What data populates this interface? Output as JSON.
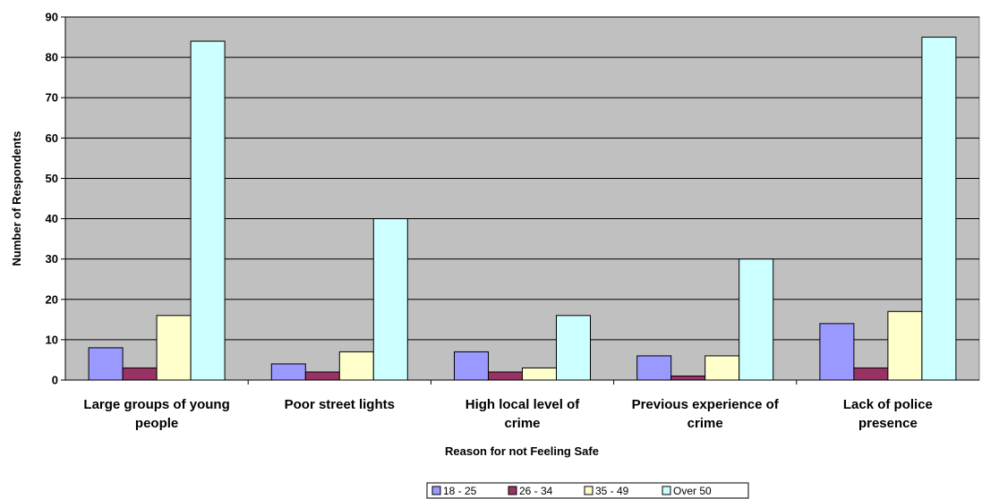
{
  "chart_data": {
    "type": "bar",
    "xlabel": "Reason for not Feeling Safe",
    "ylabel": "Number of Respondents",
    "ylim": [
      0,
      90
    ],
    "yticks": [
      0,
      10,
      20,
      30,
      40,
      50,
      60,
      70,
      80,
      90
    ],
    "grid": true,
    "legend_position": "bottom",
    "plot_background": "#c0c0c0",
    "categories": [
      [
        "Large groups of young",
        "people"
      ],
      [
        "Poor street lights"
      ],
      [
        "High local level of",
        "crime"
      ],
      [
        "Previous experience of",
        "crime"
      ],
      [
        "Lack of police",
        "presence"
      ]
    ],
    "series": [
      {
        "name": "18 - 25",
        "color": "#9999ff",
        "values": [
          8,
          4,
          7,
          6,
          14
        ]
      },
      {
        "name": "26 - 34",
        "color": "#993366",
        "values": [
          3,
          2,
          2,
          1,
          3
        ]
      },
      {
        "name": "35 - 49",
        "color": "#ffffcc",
        "values": [
          16,
          7,
          3,
          6,
          17
        ]
      },
      {
        "name": "Over 50",
        "color": "#ccffff",
        "values": [
          84,
          40,
          16,
          30,
          85
        ]
      }
    ]
  }
}
